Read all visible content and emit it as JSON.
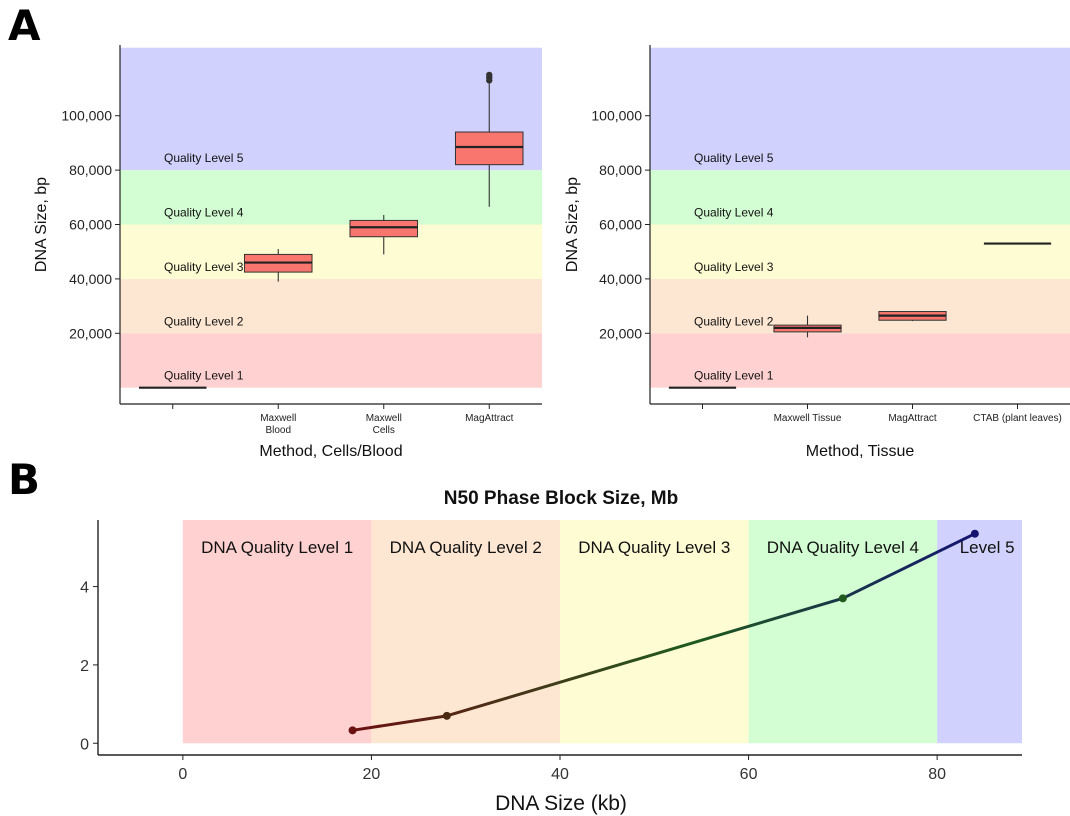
{
  "panels": {
    "a_letter": "A",
    "b_letter": "B"
  },
  "chart_data": [
    {
      "type": "box",
      "panel": "A-left",
      "xlabel": "Method, Cells/Blood",
      "ylabel": "DNA Size, bp",
      "ylim": [
        -6000,
        126000
      ],
      "yticks": [
        20000,
        40000,
        60000,
        80000,
        100000
      ],
      "ytick_labels": [
        "20,000",
        "40,000",
        "60,000",
        "80,000",
        "100,000"
      ],
      "bands": [
        {
          "label": "Quality Level 1",
          "from": 0,
          "to": 20000,
          "color": "#ffd1d1"
        },
        {
          "label": "Quality Level 2",
          "from": 20000,
          "to": 40000,
          "color": "#fde7d3"
        },
        {
          "label": "Quality Level 3",
          "from": 40000,
          "to": 60000,
          "color": "#fefcd2"
        },
        {
          "label": "Quality Level 4",
          "from": 60000,
          "to": 80000,
          "color": "#d3fdd3"
        },
        {
          "label": "Quality Level 5",
          "from": 80000,
          "to": 125000,
          "color": "#d0d1fd"
        }
      ],
      "categories": [
        "",
        "Maxwell\nBlood",
        "Maxwell\nCells",
        "MagAttract"
      ],
      "boxes": [
        {
          "category": "",
          "min": 0,
          "q1": 0,
          "median": 0,
          "q3": 0,
          "max": 0,
          "outliers": []
        },
        {
          "category": "Maxwell\nBlood",
          "min": 39000,
          "q1": 42500,
          "median": 46000,
          "q3": 49000,
          "max": 51000,
          "outliers": []
        },
        {
          "category": "Maxwell\nCells",
          "min": 49000,
          "q1": 55500,
          "median": 59000,
          "q3": 61500,
          "max": 63500,
          "outliers": []
        },
        {
          "category": "MagAttract",
          "min": 66500,
          "q1": 82000,
          "median": 88500,
          "q3": 94000,
          "max": 112000,
          "outliers": [
            113000,
            114000,
            115000
          ]
        }
      ],
      "box_color": "#f8766d"
    },
    {
      "type": "box",
      "panel": "A-right",
      "xlabel": "Method, Tissue",
      "ylabel": "DNA Size, bp",
      "ylim": [
        -6000,
        126000
      ],
      "yticks": [
        20000,
        40000,
        60000,
        80000,
        100000
      ],
      "ytick_labels": [
        "20,000",
        "40,000",
        "60,000",
        "80,000",
        "100,000"
      ],
      "bands": [
        {
          "label": "Quality Level 1",
          "from": 0,
          "to": 20000,
          "color": "#ffd1d1"
        },
        {
          "label": "Quality Level 2",
          "from": 20000,
          "to": 40000,
          "color": "#fde7d3"
        },
        {
          "label": "Quality Level 3",
          "from": 40000,
          "to": 60000,
          "color": "#fefcd2"
        },
        {
          "label": "Quality Level 4",
          "from": 60000,
          "to": 80000,
          "color": "#d3fdd3"
        },
        {
          "label": "Quality Level 5",
          "from": 80000,
          "to": 125000,
          "color": "#d0d1fd"
        }
      ],
      "categories": [
        "",
        "Maxwell Tissue",
        "MagAttract",
        "CTAB (plant leaves)"
      ],
      "boxes": [
        {
          "category": "",
          "min": 0,
          "q1": 0,
          "median": 0,
          "q3": 0,
          "max": 0,
          "outliers": []
        },
        {
          "category": "Maxwell Tissue",
          "min": 18500,
          "q1": 20500,
          "median": 22000,
          "q3": 23000,
          "max": 26500,
          "outliers": []
        },
        {
          "category": "MagAttract",
          "min": 24500,
          "q1": 24800,
          "median": 26500,
          "q3": 28000,
          "max": 28000,
          "outliers": []
        },
        {
          "category": "CTAB (plant leaves)",
          "min": 53000,
          "q1": 53000,
          "median": 53000,
          "q3": 53000,
          "max": 53000,
          "outliers": []
        }
      ],
      "box_color": "#f8766d"
    },
    {
      "type": "line",
      "panel": "B",
      "title": "N50 Phase Block Size, Mb",
      "xlabel": "DNA Size (kb)",
      "ylabel": "",
      "xlim": [
        -9,
        89
      ],
      "ylim": [
        -0.3,
        5.7
      ],
      "xticks": [
        0,
        20,
        40,
        60,
        80
      ],
      "yticks": [
        0,
        2,
        4
      ],
      "bands": [
        {
          "label": "DNA Quality Level 1",
          "from": 0,
          "to": 20,
          "color": "#ffd1d1"
        },
        {
          "label": "DNA Quality Level 2",
          "from": 20,
          "to": 40,
          "color": "#fde7d3"
        },
        {
          "label": "DNA Quality Level 3",
          "from": 40,
          "to": 60,
          "color": "#fefcd2"
        },
        {
          "label": "DNA Quality Level 4",
          "from": 60,
          "to": 80,
          "color": "#d3fdd3"
        },
        {
          "label": "Level 5",
          "from": 80,
          "to": 89,
          "color": "#d0d1fd"
        }
      ],
      "x": [
        18,
        28,
        70,
        84
      ],
      "y": [
        0.33,
        0.7,
        3.7,
        5.35
      ],
      "line_gradient": [
        "#6b1111",
        "#1e5a1e",
        "#141470"
      ]
    }
  ]
}
